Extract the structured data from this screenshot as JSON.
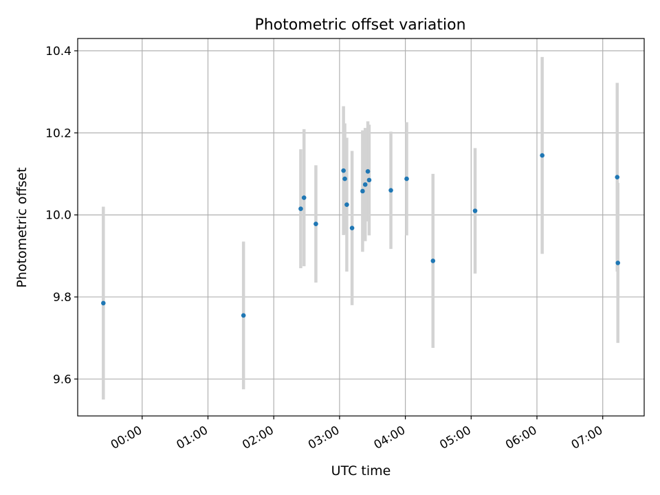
{
  "chart_data": {
    "type": "scatter",
    "title": "Photometric offset variation",
    "xlabel": "UTC time",
    "ylabel": "Photometric offset",
    "x_unit": "hours (UTC)",
    "xlim": [
      -0.98,
      7.63
    ],
    "ylim": [
      9.51,
      10.43
    ],
    "grid": true,
    "x_ticks": [
      {
        "value": 0,
        "label": "00:00"
      },
      {
        "value": 1,
        "label": "01:00"
      },
      {
        "value": 2,
        "label": "02:00"
      },
      {
        "value": 3,
        "label": "03:00"
      },
      {
        "value": 4,
        "label": "04:00"
      },
      {
        "value": 5,
        "label": "05:00"
      },
      {
        "value": 6,
        "label": "06:00"
      },
      {
        "value": 7,
        "label": "07:00"
      }
    ],
    "y_ticks": [
      {
        "value": 9.6,
        "label": "9.6"
      },
      {
        "value": 9.8,
        "label": "9.8"
      },
      {
        "value": 10.0,
        "label": "10.0"
      },
      {
        "value": 10.2,
        "label": "10.2"
      },
      {
        "value": 10.4,
        "label": "10.4"
      }
    ],
    "marker_color": "#1f77b4",
    "errorbar_color": "#d3d3d3",
    "points": [
      {
        "x": -0.59,
        "y": 9.785,
        "yerr": 0.235
      },
      {
        "x": 1.54,
        "y": 9.755,
        "yerr": 0.18
      },
      {
        "x": 2.41,
        "y": 10.015,
        "yerr": 0.145
      },
      {
        "x": 2.46,
        "y": 10.042,
        "yerr": 0.167
      },
      {
        "x": 2.64,
        "y": 9.978,
        "yerr": 0.143
      },
      {
        "x": 3.06,
        "y": 10.108,
        "yerr": 0.157
      },
      {
        "x": 3.08,
        "y": 10.088,
        "yerr": 0.135
      },
      {
        "x": 3.11,
        "y": 10.025,
        "yerr": 0.163
      },
      {
        "x": 3.19,
        "y": 9.968,
        "yerr": 0.188
      },
      {
        "x": 3.35,
        "y": 10.058,
        "yerr": 0.148
      },
      {
        "x": 3.39,
        "y": 10.074,
        "yerr": 0.138
      },
      {
        "x": 3.43,
        "y": 10.106,
        "yerr": 0.122
      },
      {
        "x": 3.45,
        "y": 10.085,
        "yerr": 0.135
      },
      {
        "x": 3.78,
        "y": 10.06,
        "yerr": 0.143
      },
      {
        "x": 4.02,
        "y": 10.088,
        "yerr": 0.138
      },
      {
        "x": 4.42,
        "y": 9.888,
        "yerr": 0.212
      },
      {
        "x": 5.06,
        "y": 10.01,
        "yerr": 0.153
      },
      {
        "x": 6.08,
        "y": 10.145,
        "yerr": 0.24
      },
      {
        "x": 7.22,
        "y": 10.092,
        "yerr": 0.23
      },
      {
        "x": 7.23,
        "y": 9.883,
        "yerr": 0.195
      }
    ]
  }
}
